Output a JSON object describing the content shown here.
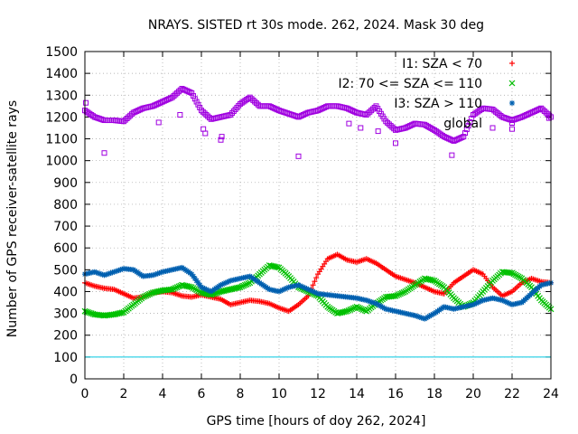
{
  "chart_data": {
    "type": "scatter",
    "title": "NRAYS. SISTED rt 30s mode. 262, 2024. Mask 30 deg",
    "xlabel": "GPS time [hours of doy 262, 2024]",
    "ylabel": "Number of GPS receiver-satellite rays",
    "xlim": [
      0,
      24
    ],
    "ylim": [
      0,
      1500
    ],
    "x_ticks": [
      0,
      2,
      4,
      6,
      8,
      10,
      12,
      14,
      16,
      18,
      20,
      22,
      24
    ],
    "y_ticks": [
      0,
      100,
      200,
      300,
      400,
      500,
      600,
      700,
      800,
      900,
      1000,
      1100,
      1200,
      1300,
      1400,
      1500
    ],
    "grid": true,
    "legend_position": "top-right",
    "threshold_line": {
      "y": 100,
      "color": "#00c8e0"
    },
    "series": [
      {
        "name": "I1: SZA < 70",
        "marker": "+",
        "color": "#ff0000",
        "x": [
          0,
          0.5,
          1,
          1.5,
          2,
          2.5,
          3,
          3.5,
          4,
          4.5,
          5,
          5.5,
          6,
          6.5,
          7,
          7.5,
          8,
          8.5,
          9,
          9.5,
          10,
          10.5,
          11,
          11.5,
          12,
          12.5,
          13,
          13.5,
          14,
          14.5,
          15,
          15.5,
          16,
          16.5,
          17,
          17.5,
          18,
          18.5,
          19,
          19.5,
          20,
          20.5,
          21,
          21.5,
          22,
          22.5,
          23,
          23.5,
          24
        ],
        "y": [
          440,
          425,
          415,
          410,
          390,
          370,
          375,
          395,
          400,
          395,
          380,
          375,
          385,
          375,
          365,
          340,
          350,
          360,
          355,
          345,
          325,
          310,
          340,
          380,
          480,
          550,
          570,
          545,
          535,
          550,
          530,
          500,
          470,
          455,
          440,
          420,
          400,
          390,
          440,
          470,
          500,
          480,
          420,
          380,
          400,
          440,
          460,
          445,
          440
        ]
      },
      {
        "name": "I2: 70 <= SZA <= 110",
        "marker": "x",
        "color": "#00c000",
        "x": [
          0,
          0.5,
          1,
          1.5,
          2,
          2.5,
          3,
          3.5,
          4,
          4.5,
          5,
          5.5,
          6,
          6.5,
          7,
          7.5,
          8,
          8.5,
          9,
          9.5,
          10,
          10.5,
          11,
          11.5,
          12,
          12.5,
          13,
          13.5,
          14,
          14.5,
          15,
          15.5,
          16,
          16.5,
          17,
          17.5,
          18,
          18.5,
          19,
          19.5,
          20,
          20.5,
          21,
          21.5,
          22,
          22.5,
          23,
          23.5,
          24
        ],
        "y": [
          310,
          295,
          290,
          295,
          305,
          340,
          375,
          395,
          405,
          410,
          430,
          420,
          395,
          385,
          400,
          410,
          420,
          440,
          480,
          520,
          510,
          470,
          420,
          400,
          380,
          330,
          300,
          310,
          330,
          310,
          345,
          375,
          380,
          400,
          430,
          460,
          450,
          420,
          370,
          330,
          350,
          400,
          450,
          490,
          485,
          460,
          420,
          360,
          320
        ]
      },
      {
        "name": "I3: SZA > 110",
        "marker": "*",
        "color": "#0060b0",
        "x": [
          0,
          0.5,
          1,
          1.5,
          2,
          2.5,
          3,
          3.5,
          4,
          4.5,
          5,
          5.5,
          6,
          6.5,
          7,
          7.5,
          8,
          8.5,
          9,
          9.5,
          10,
          10.5,
          11,
          11.5,
          12,
          12.5,
          13,
          13.5,
          14,
          14.5,
          15,
          15.5,
          16,
          16.5,
          17,
          17.5,
          18,
          18.5,
          19,
          19.5,
          20,
          20.5,
          21,
          21.5,
          22,
          22.5,
          23,
          23.5,
          24
        ],
        "y": [
          480,
          490,
          475,
          490,
          505,
          500,
          470,
          475,
          490,
          500,
          510,
          480,
          420,
          400,
          430,
          450,
          460,
          470,
          440,
          410,
          400,
          420,
          430,
          410,
          390,
          385,
          380,
          375,
          370,
          360,
          345,
          320,
          310,
          300,
          290,
          275,
          300,
          330,
          320,
          330,
          340,
          360,
          370,
          360,
          340,
          350,
          390,
          430,
          440
        ]
      },
      {
        "name": "global",
        "marker": "square",
        "color": "#a000e0",
        "x": [
          0,
          0.5,
          1,
          1.5,
          2,
          2.5,
          3,
          3.5,
          4,
          4.5,
          5,
          5.5,
          6,
          6.5,
          7,
          7.5,
          8,
          8.5,
          9,
          9.5,
          10,
          10.5,
          11,
          11.5,
          12,
          12.5,
          13,
          13.5,
          14,
          14.5,
          15,
          15.5,
          16,
          16.5,
          17,
          17.5,
          18,
          18.5,
          19,
          19.5,
          20,
          20.5,
          21,
          21.5,
          22,
          22.5,
          23,
          23.5,
          24
        ],
        "y": [
          1230,
          1200,
          1185,
          1185,
          1180,
          1220,
          1240,
          1250,
          1270,
          1290,
          1330,
          1310,
          1230,
          1190,
          1200,
          1210,
          1260,
          1290,
          1250,
          1250,
          1230,
          1215,
          1200,
          1220,
          1230,
          1250,
          1250,
          1240,
          1220,
          1210,
          1250,
          1180,
          1140,
          1150,
          1170,
          1165,
          1140,
          1110,
          1090,
          1110,
          1210,
          1240,
          1235,
          1200,
          1185,
          1200,
          1220,
          1240,
          1200
        ],
        "outliers": {
          "x": [
            0.05,
            1.0,
            3.8,
            4.9,
            6.1,
            6.2,
            7.0,
            7.05,
            11.0,
            13.6,
            14.2,
            15.1,
            16.0,
            18.9,
            21.0,
            22.0,
            23.9
          ],
          "y": [
            1265,
            1035,
            1175,
            1210,
            1145,
            1125,
            1095,
            1110,
            1020,
            1170,
            1150,
            1135,
            1080,
            1025,
            1150,
            1145,
            1195
          ]
        }
      }
    ]
  }
}
